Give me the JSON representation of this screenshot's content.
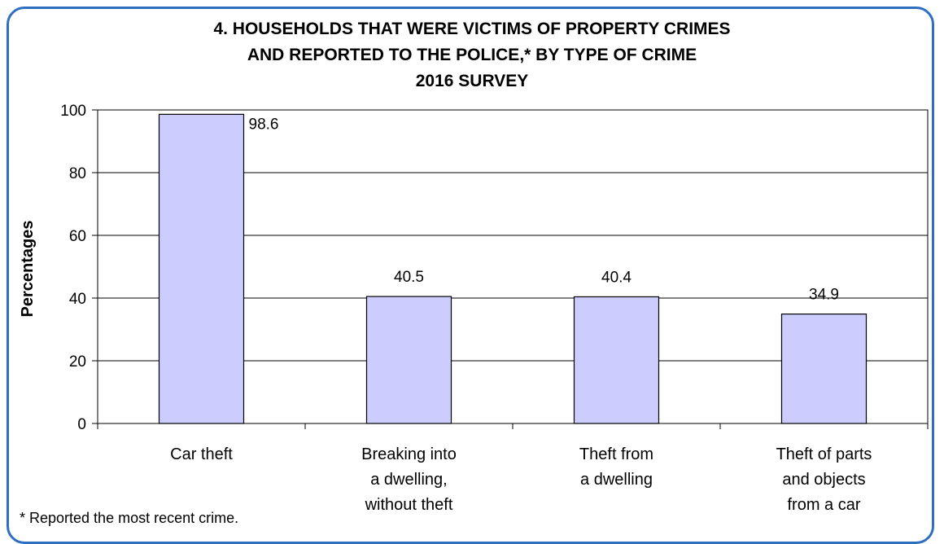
{
  "chart_data": {
    "type": "bar",
    "title_lines": [
      "4. HOUSEHOLDS THAT WERE VICTIMS OF PROPERTY CRIMES",
      "AND REPORTED TO THE POLICE,* BY TYPE OF CRIME",
      "2016 SURVEY"
    ],
    "ylabel": "Percentages",
    "xlabel": "",
    "categories": [
      [
        "Car theft"
      ],
      [
        "Breaking into",
        "a dwelling,",
        "without theft"
      ],
      [
        "Theft from",
        "a dwelling"
      ],
      [
        "Theft of parts",
        "and objects",
        "from a car"
      ]
    ],
    "values": [
      98.6,
      40.5,
      40.4,
      34.9
    ],
    "data_labels": [
      "98.6",
      "40.5",
      "40.4",
      "34.9"
    ],
    "ylim": [
      0,
      100
    ],
    "yticks": [
      0,
      20,
      40,
      60,
      80,
      100
    ],
    "grid": true,
    "legend": "none",
    "bar_color": "#ccccff",
    "border_color": "#2f6fc1"
  },
  "footnote": "* Reported  the most recent crime."
}
